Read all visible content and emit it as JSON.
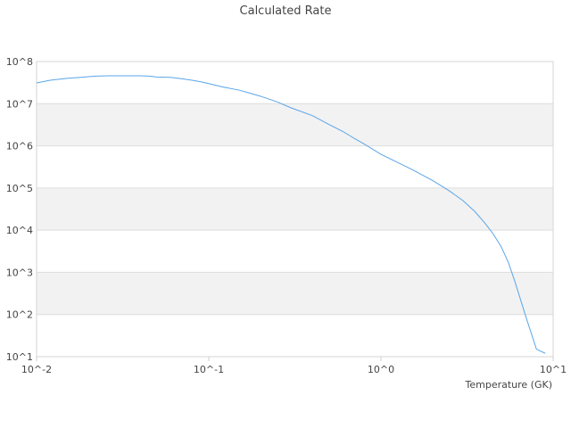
{
  "chart_data": {
    "type": "line",
    "title": "Calculated Rate",
    "xlabel": "Temperature (GK)",
    "ylabel": "",
    "x_scale": "log",
    "y_scale": "log",
    "xlim": [
      0.01,
      10
    ],
    "ylim": [
      10,
      100000000
    ],
    "x_ticks": [
      {
        "value": 0.01,
        "label": "10^-2"
      },
      {
        "value": 0.1,
        "label": "10^-1"
      },
      {
        "value": 1,
        "label": "10^0"
      },
      {
        "value": 10,
        "label": "10^1"
      }
    ],
    "y_ticks": [
      {
        "value": 10,
        "label": "10^1"
      },
      {
        "value": 100,
        "label": "10^2"
      },
      {
        "value": 1000,
        "label": "10^3"
      },
      {
        "value": 10000,
        "label": "10^4"
      },
      {
        "value": 100000,
        "label": "10^5"
      },
      {
        "value": 1000000,
        "label": "10^6"
      },
      {
        "value": 10000000,
        "label": "10^7"
      },
      {
        "value": 100000000,
        "label": "10^8"
      }
    ],
    "grid": "horizontal alternating bands",
    "legend": "none",
    "colors": {
      "line": "#5aa5e8",
      "band": "#f2f2f2",
      "grid": "#dddddd",
      "axis": "#cccccc"
    },
    "series": [
      {
        "x": [
          0.01,
          0.012,
          0.015,
          0.018,
          0.022,
          0.026,
          0.03,
          0.035,
          0.04,
          0.045,
          0.05,
          0.06,
          0.07,
          0.08,
          0.09,
          0.1,
          0.12,
          0.15,
          0.18,
          0.2,
          0.25,
          0.3,
          0.4,
          0.5,
          0.6,
          0.7,
          0.8,
          1,
          1.5,
          2,
          2.5,
          3,
          3.5,
          4,
          4.5,
          5,
          5.5,
          6,
          7,
          8,
          9
        ],
        "y": [
          31000000,
          36000000,
          40000000,
          42000000,
          45000000,
          46000000,
          46000000,
          46000000,
          46000000,
          45000000,
          43000000,
          42000000,
          39000000,
          36000000,
          33000000,
          30000000,
          25000000,
          21000000,
          17000000,
          15000000,
          11000000,
          8000000,
          5200000,
          3200000,
          2200000,
          1500000,
          1100000,
          630000,
          280000,
          150000,
          85000,
          50000,
          28000,
          15000,
          8000,
          4000,
          1700,
          600,
          80,
          15,
          12
        ]
      }
    ]
  }
}
